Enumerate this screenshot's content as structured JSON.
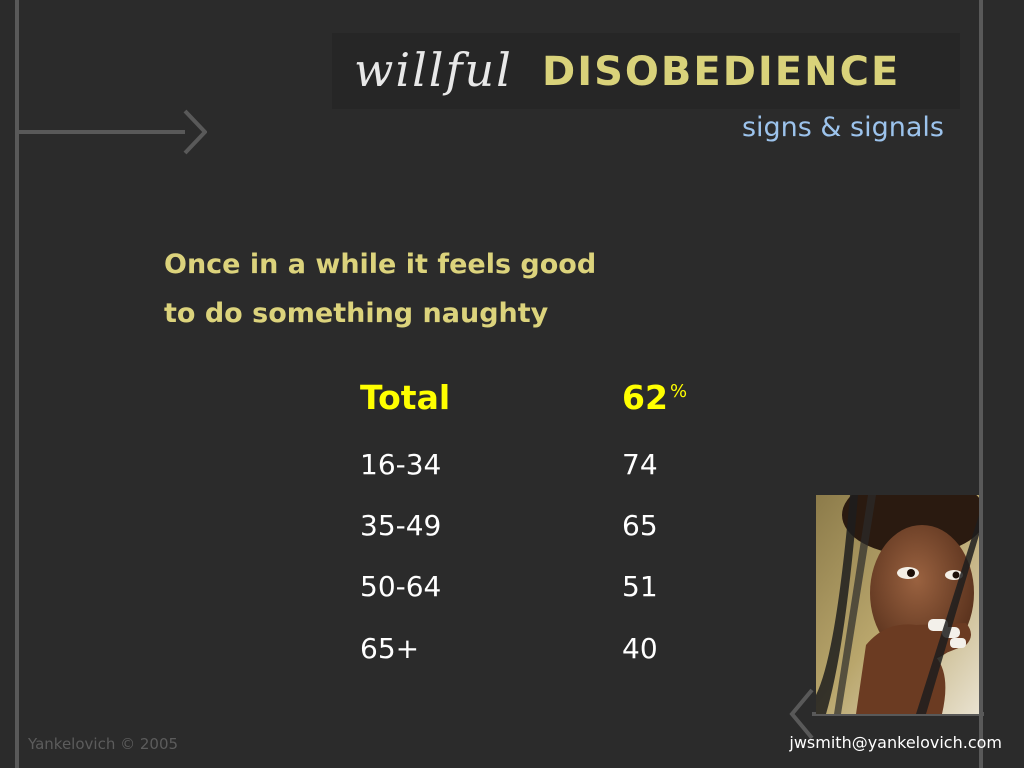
{
  "header": {
    "title_script": "willful",
    "title_bold": "DISOBEDIENCE",
    "subtitle": "signs & signals"
  },
  "statement": {
    "line1": "Once in a while it feels good",
    "line2": "to do something naughty"
  },
  "table": {
    "total": {
      "label": "Total",
      "value": "62",
      "unit": "%"
    },
    "rows": [
      {
        "label": "16-34",
        "value": "74"
      },
      {
        "label": "35-49",
        "value": "65"
      },
      {
        "label": "50-64",
        "value": "51"
      },
      {
        "label": "65+",
        "value": "40"
      }
    ]
  },
  "footer": {
    "copyright": "Yankelovich © 2005",
    "email": "jwsmith@yankelovich.com"
  },
  "colors": {
    "background": "#2b2b2b",
    "frame": "#595959",
    "title_bold": "#d9d27a",
    "subtitle": "#9cc3ec",
    "statement": "#dcd37c",
    "total": "#ffff00"
  },
  "icons": {
    "top_arrow": "right-arrow-icon",
    "bottom_arrow": "left-chevron-icon"
  }
}
